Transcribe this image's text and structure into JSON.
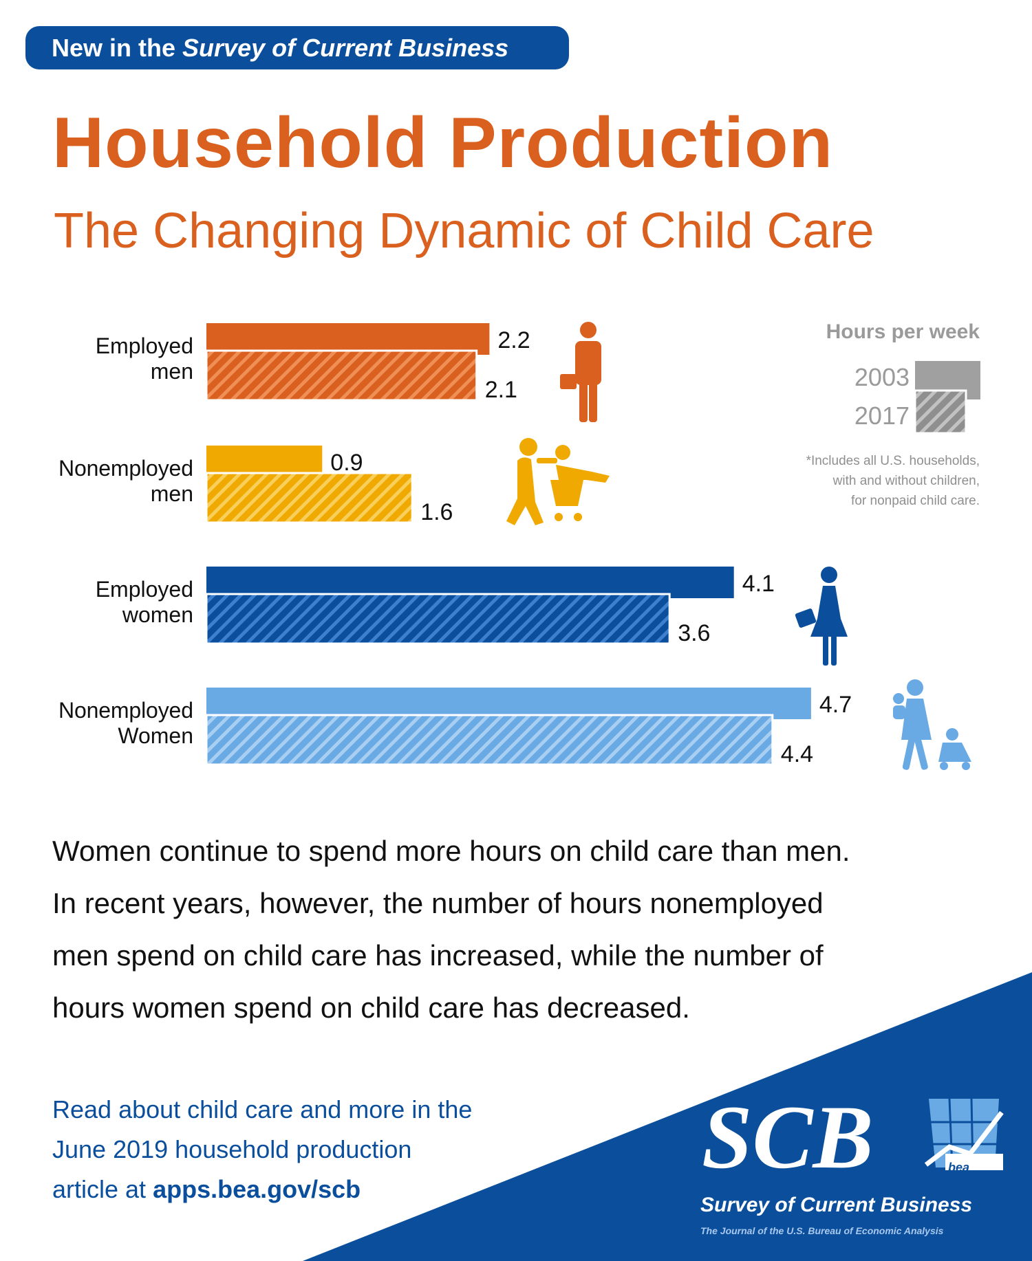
{
  "header": {
    "badge_prefix": "New in the ",
    "badge_italic": "Survey of Current Business",
    "title": "Household Production",
    "subtitle": "The Changing Dynamic of Child Care"
  },
  "legend": {
    "title": "Hours per week",
    "years": [
      "2003",
      "2017"
    ],
    "note_lines": [
      "*Includes all U.S. households,",
      "with and without children,",
      "for nonpaid child care."
    ]
  },
  "colors": {
    "employed_men": "#d9601e",
    "nonemployed_men": "#f0a900",
    "employed_women": "#0b4f9c",
    "nonemployed_women": "#6aaae4",
    "legend_gray": "#a0a0a0",
    "brand_blue": "#0b4f9c"
  },
  "chart_data": {
    "type": "bar",
    "orientation": "horizontal",
    "categories": [
      [
        "Employed",
        "men"
      ],
      [
        "Nonemployed",
        "men"
      ],
      [
        "Employed",
        "women"
      ],
      [
        "Nonemployed",
        "Women"
      ]
    ],
    "series": [
      {
        "name": "2003",
        "values": [
          2.2,
          0.9,
          4.1,
          4.7
        ]
      },
      {
        "name": "2017",
        "values": [
          2.1,
          1.6,
          3.6,
          4.4
        ]
      }
    ],
    "value_labels": [
      [
        "2.2",
        "2.1"
      ],
      [
        "0.9",
        "1.6"
      ],
      [
        "4.1",
        "3.6"
      ],
      [
        "4.7",
        "4.4"
      ]
    ],
    "icons": [
      "businessman-icon",
      "father-with-cart-icon",
      "businesswoman-icon",
      "mother-with-children-icon"
    ],
    "legend": "top-right",
    "grid": false
  },
  "body": {
    "lines": [
      "Women continue to spend more hours on child care than men.",
      "In recent years, however, the number of hours nonemployed",
      "men spend on child care has increased, while the number of",
      "hours women spend on child care has decreased."
    ]
  },
  "footer": {
    "read_lines": [
      "Read about child care and more in the",
      "June 2019 household production"
    ],
    "read_prefix": "article at ",
    "read_link": "apps.bea.gov/scb",
    "logo_text": "SCB",
    "logo_small": "bea",
    "logo_tagline": "Survey of Current Business",
    "logo_sub": "The Journal of the U.S. Bureau of Economic Analysis"
  }
}
